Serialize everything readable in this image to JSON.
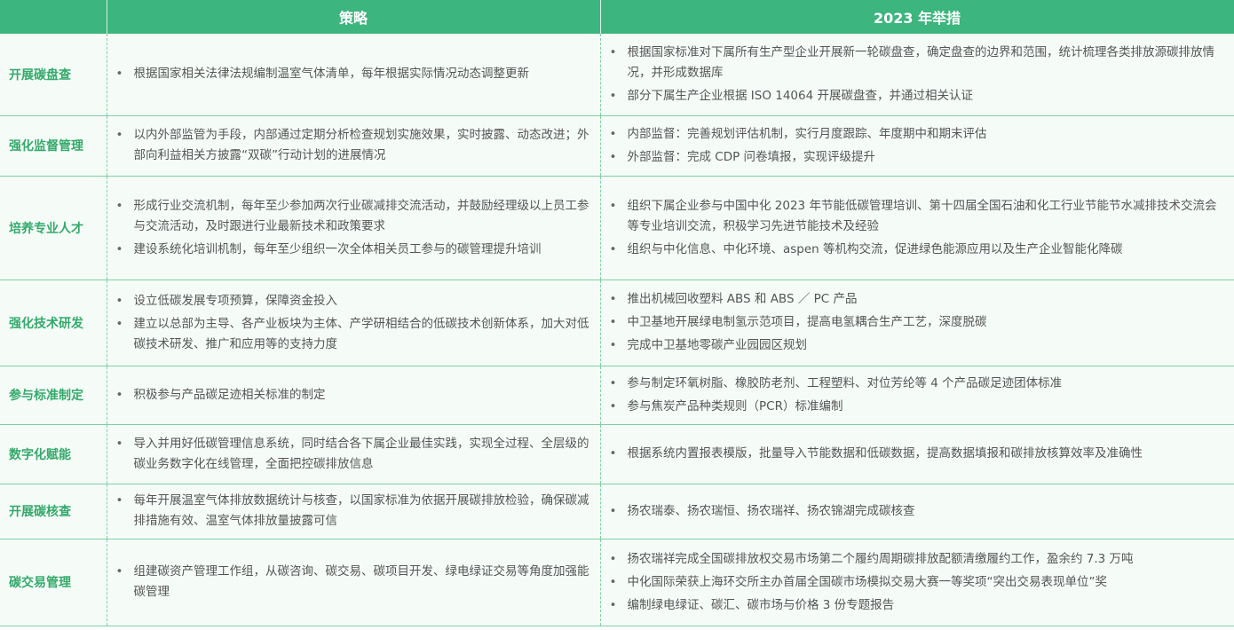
{
  "header": {
    "col0": "",
    "col1": "策略",
    "col2": "2023 年举措"
  },
  "colors": {
    "header": "#3db57e",
    "label": "#35a96b",
    "row_bg": "#f5fcf8"
  },
  "rows": [
    {
      "label": "开展碳盘查",
      "strategy": [
        "根据国家相关法律法规编制温室气体清单，每年根据实际情况动态调整更新"
      ],
      "actions": [
        "根据国家标准对下属所有生产型企业开展新一轮碳盘查，确定盘查的边界和范围，统计梳理各类排放源碳排放情况，并形成数据库",
        "部分下属生产企业根据 ISO 14064 开展碳盘查，并通过相关认证"
      ]
    },
    {
      "label": "强化监督管理",
      "strategy": [
        "以内外部监管为手段，内部通过定期分析检查规划实施效果，实时披露、动态改进；外部向利益相关方披露“双碳”行动计划的进展情况"
      ],
      "actions": [
        "内部监督：完善规划评估机制，实行月度跟踪、年度期中和期末评估",
        "外部监督：完成 CDP 问卷填报，实现评级提升"
      ]
    },
    {
      "label": "培养专业人才",
      "strategy": [
        "形成行业交流机制，每年至少参加两次行业碳减排交流活动，并鼓励经理级以上员工参与交流活动，及时跟进行业最新技术和政策要求",
        "建设系统化培训机制，每年至少组织一次全体相关员工参与的碳管理提升培训"
      ],
      "actions": [
        "组织下属企业参与中国中化 2023 年节能低碳管理培训、第十四届全国石油和化工行业节能节水减排技术交流会等专业培训交流，积极学习先进节能技术及经验",
        "组织与中化信息、中化环境、aspen 等机构交流，促进绿色能源应用以及生产企业智能化降碳"
      ]
    },
    {
      "label": "强化技术研发",
      "strategy": [
        "设立低碳发展专项预算，保障资金投入",
        "建立以总部为主导、各产业板块为主体、产学研相结合的低碳技术创新体系，加大对低碳技术研发、推广和应用等的支持力度"
      ],
      "actions": [
        "推出机械回收塑料 ABS 和 ABS ／ PC 产品",
        "中卫基地开展绿电制氢示范项目，提高电氢耦合生产工艺，深度脱碳",
        "完成中卫基地零碳产业园园区规划"
      ]
    },
    {
      "label": "参与标准制定",
      "strategy": [
        "积极参与产品碳足迹相关标准的制定"
      ],
      "actions": [
        "参与制定环氧树脂、橡胶防老剂、工程塑料、对位芳纶等 4 个产品碳足迹团体标准",
        "参与焦炭产品种类规则（PCR）标准编制"
      ]
    },
    {
      "label": "数字化赋能",
      "strategy": [
        "导入并用好低碳管理信息系统，同时结合各下属企业最佳实践，实现全过程、全层级的碳业务数字化在线管理，全面把控碳排放信息"
      ],
      "actions": [
        "根据系统内置报表模版，批量导入节能数据和低碳数据，提高数据填报和碳排放核算效率及准确性"
      ]
    },
    {
      "label": "开展碳核查",
      "strategy": [
        "每年开展温室气体排放数据统计与核查，以国家标准为依据开展碳排放检验，确保碳减排措施有效、温室气体排放量披露可信"
      ],
      "actions": [
        "扬农瑞泰、扬农瑞恒、扬农瑞祥、扬农锦湖完成碳核查"
      ]
    },
    {
      "label": "碳交易管理",
      "strategy": [
        "组建碳资产管理工作组，从碳咨询、碳交易、碳项目开发、绿电绿证交易等角度加强能碳管理"
      ],
      "actions": [
        "扬农瑞祥完成全国碳排放权交易市场第二个履约周期碳排放配额清缴履约工作，盈余约 7.3 万吨",
        "中化国际荣获上海环交所主办首届全国碳市场模拟交易大赛一等奖项“突出交易表现单位”奖",
        "编制绿电绿证、碳汇、碳市场与价格 3 份专题报告"
      ]
    }
  ]
}
